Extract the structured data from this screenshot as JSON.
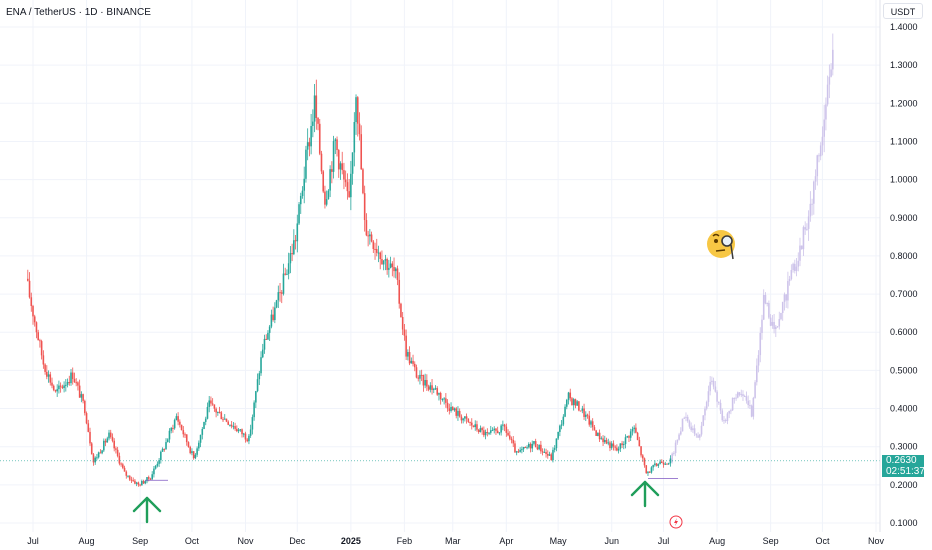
{
  "header": {
    "title": "ENA / TetherUS · 1D · BINANCE"
  },
  "axis": {
    "currency_button": "USDT"
  },
  "current_price": {
    "value": "0.2630",
    "countdown": "02:51:37",
    "color": "#26a69a"
  },
  "colors": {
    "up": "#26a69a",
    "down": "#ef5350",
    "projection": "#cdc3ea",
    "arrow": "#1f9e5a",
    "grid": "#f0f3fa"
  },
  "icons": [
    "monocle-face-emoji-icon",
    "arrow-up-icon",
    "flash-icon"
  ],
  "chart_data": {
    "type": "candlestick",
    "y_ticks": [
      "1.4000",
      "1.3000",
      "1.2000",
      "1.1000",
      "1.0000",
      "0.9000",
      "0.8000",
      "0.7000",
      "0.6000",
      "0.5000",
      "0.4000",
      "0.3000",
      "0.2000",
      "0.1000"
    ],
    "x_ticks": [
      "Jul",
      "Aug",
      "Sep",
      "Oct",
      "Nov",
      "Dec",
      "2025",
      "Feb",
      "Mar",
      "Apr",
      "May",
      "Jun",
      "Jul",
      "Aug",
      "Sep",
      "Oct",
      "Nov"
    ],
    "ylim": [
      0.1,
      1.4
    ],
    "series": [
      {
        "style": "actual",
        "x": [
          "2024-06-28",
          "2024-07-08",
          "2024-07-15",
          "2024-07-25",
          "2024-08-01",
          "2024-08-06",
          "2024-08-15",
          "2024-08-24",
          "2024-09-01",
          "2024-09-08",
          "2024-09-16",
          "2024-09-23",
          "2024-10-03",
          "2024-10-12",
          "2024-10-22",
          "2024-11-04",
          "2024-11-12",
          "2024-11-22",
          "2024-12-01",
          "2024-12-07",
          "2024-12-12",
          "2024-12-18",
          "2024-12-24",
          "2025-01-01",
          "2025-01-05",
          "2025-01-10",
          "2025-01-20",
          "2025-01-28",
          "2025-02-03",
          "2025-02-10",
          "2025-02-20",
          "2025-03-01",
          "2025-03-12",
          "2025-03-22",
          "2025-04-01",
          "2025-04-08",
          "2025-04-18",
          "2025-04-28",
          "2025-05-08",
          "2025-05-15",
          "2025-05-25",
          "2025-06-05",
          "2025-06-15",
          "2025-06-22",
          "2025-06-30",
          "2025-07-06"
        ],
        "close": [
          0.74,
          0.52,
          0.44,
          0.49,
          0.4,
          0.26,
          0.33,
          0.23,
          0.2,
          0.22,
          0.3,
          0.38,
          0.27,
          0.41,
          0.37,
          0.32,
          0.56,
          0.7,
          0.85,
          1.05,
          1.2,
          0.95,
          1.1,
          0.93,
          1.25,
          0.88,
          0.8,
          0.75,
          0.55,
          0.48,
          0.45,
          0.4,
          0.36,
          0.33,
          0.35,
          0.28,
          0.31,
          0.27,
          0.43,
          0.4,
          0.33,
          0.29,
          0.35,
          0.23,
          0.26,
          0.263
        ]
      },
      {
        "style": "projection",
        "x": [
          "2025-07-06",
          "2025-07-14",
          "2025-07-22",
          "2025-07-30",
          "2025-08-06",
          "2025-08-14",
          "2025-08-22",
          "2025-08-29",
          "2025-09-05",
          "2025-09-12",
          "2025-09-19",
          "2025-09-26",
          "2025-10-03",
          "2025-10-08"
        ],
        "close": [
          0.26,
          0.38,
          0.32,
          0.48,
          0.36,
          0.45,
          0.39,
          0.68,
          0.6,
          0.72,
          0.82,
          0.95,
          1.15,
          1.35
        ]
      }
    ]
  }
}
